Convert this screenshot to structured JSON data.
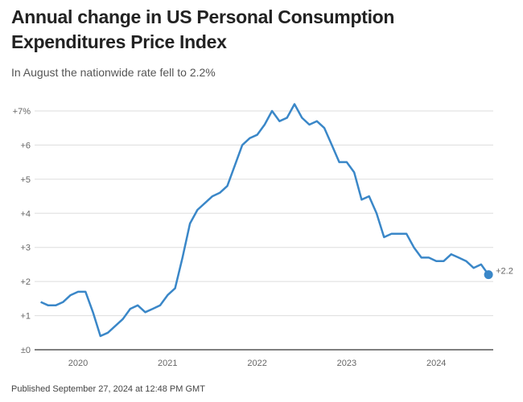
{
  "chart_data": {
    "type": "line",
    "title": "Annual change in US Personal Consumption Expenditures Price Index",
    "subtitle": "In August the nationwide rate fell to 2.2%",
    "start_month": "2019-08",
    "end_month": "2024-08",
    "x_tick_labels": [
      "2020",
      "2021",
      "2022",
      "2023",
      "2024"
    ],
    "y_tick_labels": [
      "±0",
      "+1",
      "+2",
      "+3",
      "+4",
      "+5",
      "+6",
      "+7%"
    ],
    "ylim": [
      0,
      7
    ],
    "grid": true,
    "line_color": "#3a87c8",
    "end_label": "+2.2",
    "series": [
      {
        "values": [
          1.4,
          1.3,
          1.3,
          1.4,
          1.6,
          1.7,
          1.7,
          1.1,
          0.4,
          0.5,
          0.7,
          0.9,
          1.2,
          1.3,
          1.1,
          1.2,
          1.3,
          1.6,
          1.8,
          2.7,
          3.7,
          4.1,
          4.3,
          4.5,
          4.6,
          4.8,
          5.4,
          6.0,
          6.2,
          6.3,
          6.6,
          7.0,
          6.7,
          6.8,
          7.2,
          6.8,
          6.6,
          6.7,
          6.5,
          6.0,
          5.5,
          5.5,
          5.2,
          4.4,
          4.5,
          4.0,
          3.3,
          3.4,
          3.4,
          3.4,
          3.0,
          2.7,
          2.7,
          2.6,
          2.6,
          2.8,
          2.7,
          2.6,
          2.4,
          2.5,
          2.2
        ]
      }
    ]
  },
  "footer": "Published September 27, 2024 at 12:48 PM GMT"
}
